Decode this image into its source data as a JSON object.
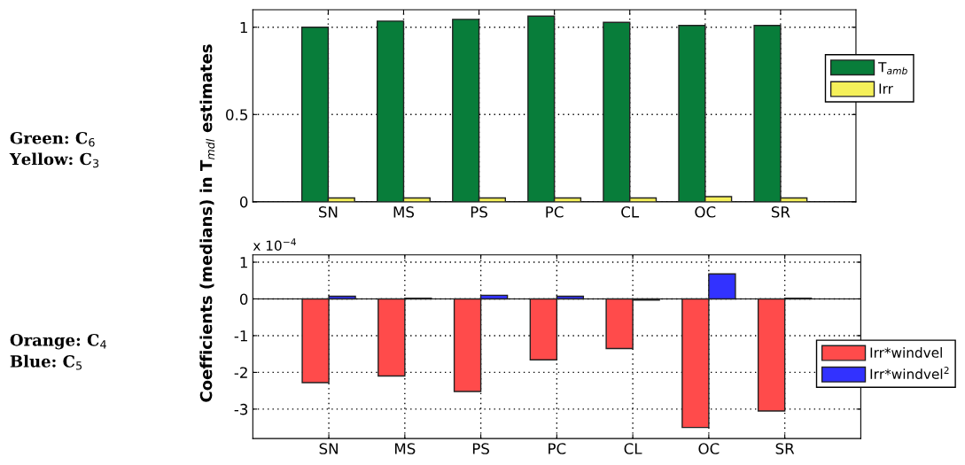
{
  "chart_data": [
    {
      "type": "bar",
      "ylabel": "Coefficients (medians) in T$_{mdl}$ estimates",
      "categories": [
        "SN",
        "MS",
        "PS",
        "PC",
        "CL",
        "OC",
        "SR"
      ],
      "series": [
        {
          "name": "T$_{amb}$",
          "color": "#087d3a",
          "values": [
            1.0,
            1.035,
            1.045,
            1.063,
            1.028,
            1.01,
            1.01
          ]
        },
        {
          "name": "Irr",
          "color": "#f5f05a",
          "values": [
            0.022,
            0.022,
            0.022,
            0.022,
            0.022,
            0.03,
            0.022
          ]
        }
      ],
      "ylim": [
        0,
        1.1
      ],
      "yticks": [
        0,
        0.5,
        1
      ],
      "grid": true,
      "legend": "right",
      "annotations": [
        "Green: C$_{6}$",
        "Yellow: C$_{3}$"
      ]
    },
    {
      "type": "bar",
      "categories": [
        "SN",
        "MS",
        "PS",
        "PC",
        "CL",
        "OC",
        "SR"
      ],
      "series": [
        {
          "name": "Irr*windvel",
          "color": "#ff4b4b",
          "values": [
            -2.28,
            -2.1,
            -2.52,
            -1.66,
            -1.35,
            -3.5,
            -3.05
          ]
        },
        {
          "name": "Irr*windvel$^{2}$",
          "color": "#3232ff",
          "values": [
            0.07,
            0.02,
            0.1,
            0.07,
            -0.03,
            0.68,
            0.02
          ]
        }
      ],
      "ylim": [
        -3.8,
        1.2
      ],
      "yticks": [
        -3,
        -2,
        -1,
        0,
        1
      ],
      "grid": true,
      "legend": "right",
      "annotations": [
        "x 10$^{−4}$",
        "Orange: C$_{4}$",
        "Blue: C$_{5}$"
      ]
    }
  ]
}
